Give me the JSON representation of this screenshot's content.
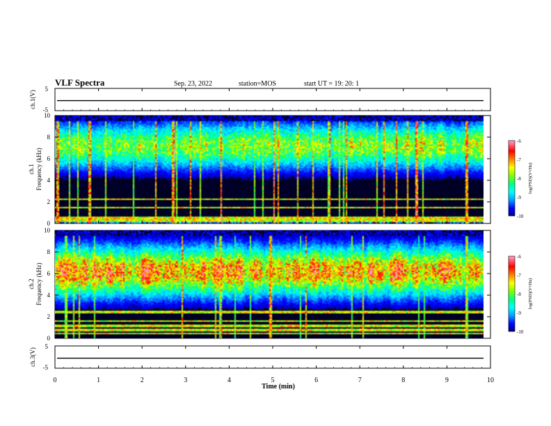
{
  "header": {
    "title": "VLF Spectra",
    "date": "Sep. 23, 2022",
    "station": "station=MOS",
    "start": "start  UT =   19: 20: 1"
  },
  "colors": {
    "colormap": [
      "#000080",
      "#0000ff",
      "#00a0ff",
      "#00ffff",
      "#00ff80",
      "#80ff00",
      "#ffff00",
      "#ff8000",
      "#ff0000",
      "#ff80a0",
      "#ffffff"
    ],
    "background": "#000020",
    "lines": "#000000"
  },
  "chart_data": [
    {
      "type": "line",
      "name": "ch1-voltage",
      "ylabel": "ch.1(V)",
      "ylim": [
        -5,
        5
      ],
      "y_ticklabels": [
        "5",
        "-5"
      ],
      "x": [
        0,
        10
      ],
      "values": [
        -0.5,
        -0.5
      ],
      "xlim": [
        0,
        10
      ]
    },
    {
      "type": "heatmap",
      "name": "ch1-spectrogram",
      "ylabel": "ch.1\nFrequency (kHz)",
      "ylim": [
        0,
        10
      ],
      "y_ticklabels": [
        "0",
        "2",
        "4",
        "6",
        "8",
        "10"
      ],
      "xlim": [
        0,
        10
      ],
      "data_xmax": 9.85,
      "colorbar": {
        "label": "log(PSD)(V²/Hz)",
        "range": [
          -10,
          -6
        ],
        "ticklabels": [
          "-6",
          "-7",
          "-8",
          "-9",
          "-10"
        ]
      },
      "profile": "weak broadband hiss 3-9 kHz with many impulsive full-band sferics; bright lines near 0.3-0.5 kHz"
    },
    {
      "type": "heatmap",
      "name": "ch2-spectrogram",
      "ylabel": "ch.2\nFrequency (kHz)",
      "ylim": [
        0,
        10
      ],
      "y_ticklabels": [
        "0",
        "2",
        "4",
        "6",
        "8",
        "10"
      ],
      "xlim": [
        0,
        10
      ],
      "data_xmax": 9.85,
      "colorbar": {
        "label": "log(PSD)(V²/Hz)",
        "range": [
          -10,
          -6
        ],
        "ticklabels": [
          "-6",
          "-7",
          "-8",
          "-9",
          "-10"
        ]
      },
      "profile": "intense broadband hiss 3-9 kHz peaking near 5-7 kHz; weaker lines below 2 kHz"
    },
    {
      "type": "line",
      "name": "ch3-voltage",
      "ylabel": "ch.3(V)",
      "ylim": [
        -5,
        5
      ],
      "y_ticklabels": [
        "5",
        "-5"
      ],
      "x": [
        0,
        10
      ],
      "values": [
        -0.5,
        -0.5
      ],
      "xlim": [
        0,
        10
      ]
    }
  ],
  "xaxis": {
    "label": "Time (min)",
    "ticklabels": [
      "0",
      "1",
      "2",
      "3",
      "4",
      "5",
      "6",
      "7",
      "8",
      "9",
      "10"
    ]
  }
}
